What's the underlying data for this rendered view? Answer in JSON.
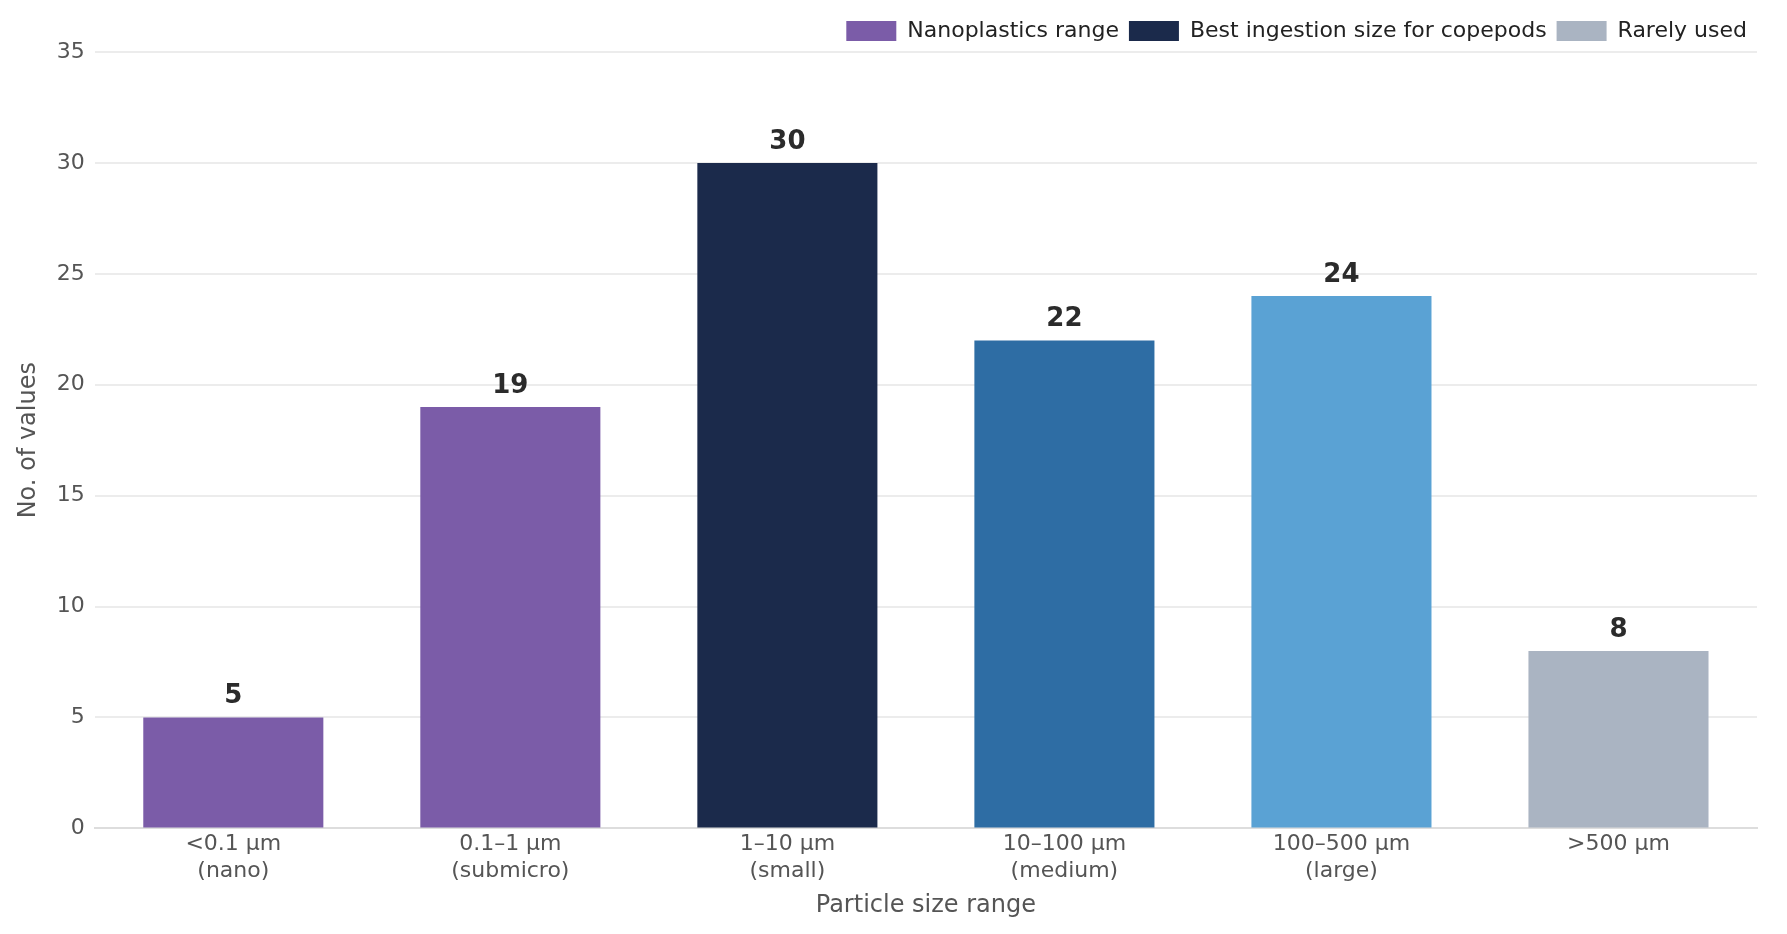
{
  "chart_data": {
    "type": "bar",
    "xlabel": "Particle size range",
    "ylabel": "No. of values",
    "categories": [
      "<0.1 µm\n(nano)",
      "0.1–1 µm\n(submicro)",
      "1–10 µm\n(small)",
      "10–100 µm\n(medium)",
      "100–500 µm\n(large)",
      ">500 µm"
    ],
    "series": [
      {
        "name": "Nanoplastics range",
        "color": "#7b5ca8",
        "values": [
          5,
          19,
          null,
          null,
          null,
          null
        ]
      },
      {
        "name": "Best ingestion size for copepods",
        "color": "#1b2a4b",
        "values": [
          null,
          null,
          30,
          null,
          null,
          null
        ]
      },
      {
        "color": "#2e6da4",
        "values": [
          null,
          null,
          null,
          22,
          null,
          null
        ]
      },
      {
        "color": "#5aa2d4",
        "values": [
          null,
          null,
          null,
          null,
          24,
          null
        ]
      },
      {
        "name": "Rarely used",
        "color": "#aab4c2",
        "values": [
          null,
          null,
          null,
          null,
          null,
          8
        ]
      }
    ],
    "ylim": [
      0,
      35
    ],
    "yticks": [
      0,
      5,
      10,
      15,
      20,
      25,
      30,
      35
    ],
    "grid": "y",
    "legend": "top right",
    "data_labels": true
  }
}
